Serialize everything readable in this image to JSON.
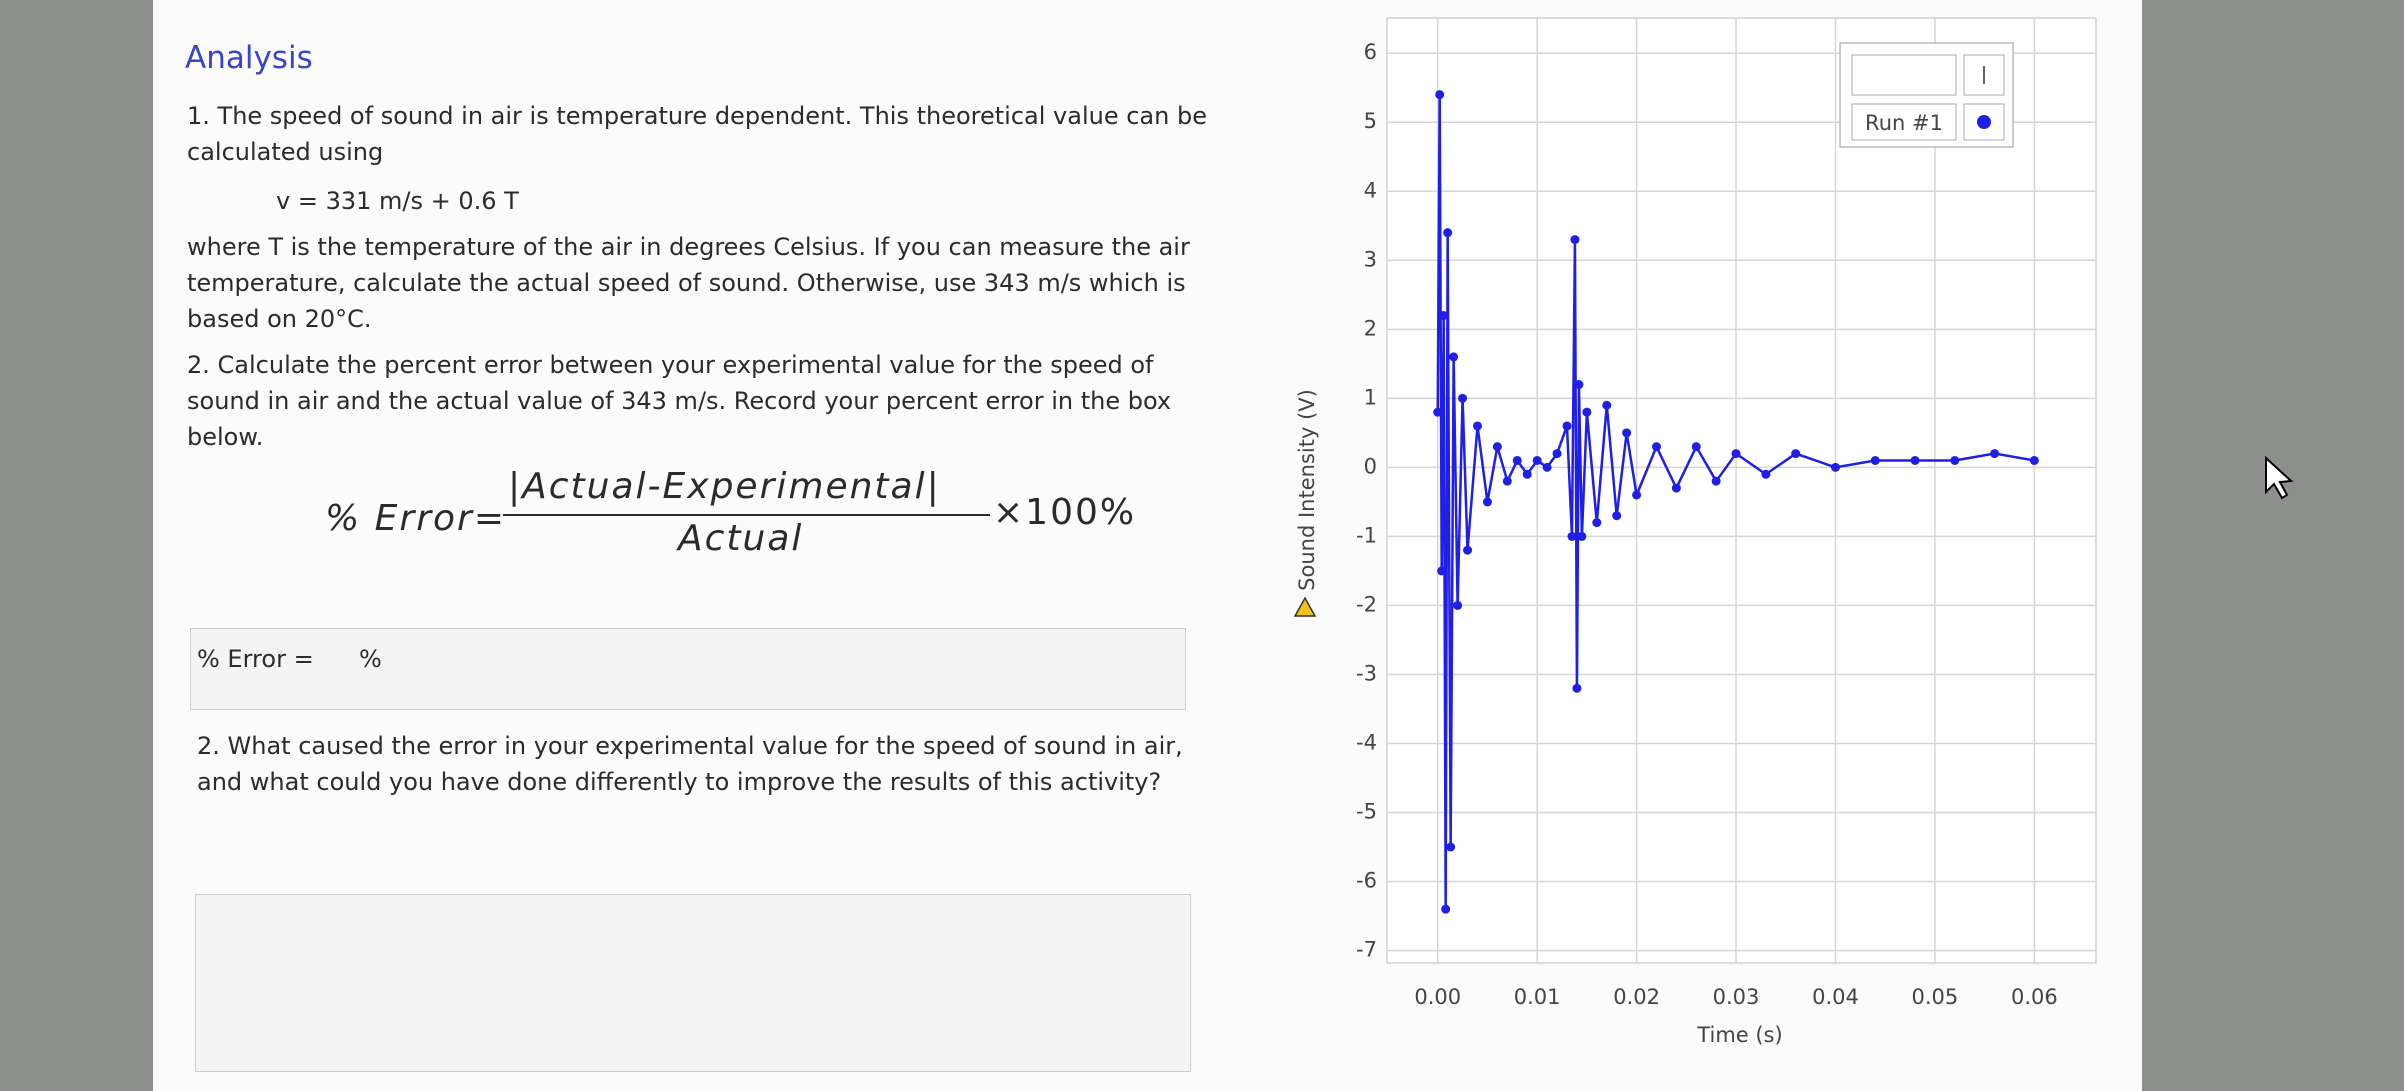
{
  "document": {
    "heading": "Analysis",
    "q1_text": "1.  The speed of sound in air is temperature dependent. This theoretical value can be calculated using",
    "q1_formula": "v = 331 m/s + 0.6 T",
    "q1_text2": "where T is the temperature of the air in degrees Celsius. If you can measure the air temperature, calculate the actual speed of sound. Otherwise, use 343 m/s which is based on  20°C.",
    "q2_text": "2. Calculate the percent error between your experimental value for the speed of sound in air and the actual value of 343 m/s. Record your percent error in the box below.",
    "formula_lhs": "% Error=",
    "formula_numerator": "|Actual-Experimental|",
    "formula_denominator": "Actual",
    "formula_rhs": "×100%",
    "error_box_label": "% Error =",
    "error_box_unit": "%",
    "q3_text": "2.  What caused the error in your experimental value for the speed of sound in air, and what could you have done differently to improve the results of this activity?"
  },
  "chart_data": {
    "type": "line",
    "x_label": "Time (s)",
    "y_label": "Sound Intensity (V)",
    "xlim": [
      -0.0051,
      0.0662
    ],
    "ylim": [
      -7.18,
      6.51
    ],
    "xticks": [
      {
        "value": 0,
        "label": "0.00"
      },
      0.01,
      0.02,
      0.03,
      0.04,
      0.05,
      0.06
    ],
    "yticks": [
      -7,
      -6,
      -5,
      -4,
      -3,
      -2,
      -1,
      0,
      1,
      2,
      3,
      4,
      5,
      6
    ],
    "grid": true,
    "legend": "top right",
    "x": [
      0,
      0.0002,
      0.0004,
      0.0006,
      0.0008,
      0.001,
      0.0013,
      0.0016,
      0.002,
      0.0025,
      0.003,
      0.004,
      0.005,
      0.006,
      0.007,
      0.008,
      0.009,
      0.01,
      0.011,
      0.012,
      0.013,
      0.0135,
      0.0138,
      0.014,
      0.0142,
      0.0145,
      0.015,
      0.016,
      0.017,
      0.018,
      0.019,
      0.02,
      0.022,
      0.024,
      0.026,
      0.028,
      0.03,
      0.033,
      0.036,
      0.04,
      0.044,
      0.048,
      0.052,
      0.056,
      0.06
    ],
    "series": [
      {
        "name": "Run #1",
        "color": "#1f1fe6",
        "values": [
          0.8,
          5.4,
          -1.5,
          2.2,
          -6.4,
          3.4,
          -5.5,
          1.6,
          -2.0,
          1.0,
          -1.2,
          0.6,
          -0.5,
          0.3,
          -0.2,
          0.1,
          -0.1,
          0.1,
          0,
          0.2,
          0.6,
          -1.0,
          3.3,
          -3.2,
          1.2,
          -1.0,
          0.8,
          -0.8,
          0.9,
          -0.7,
          0.5,
          -0.4,
          0.3,
          -0.3,
          0.3,
          -0.2,
          0.2,
          -0.1,
          0.2,
          0.0,
          0.1,
          0.1,
          0.1,
          0.2,
          0.1
        ]
      }
    ]
  }
}
